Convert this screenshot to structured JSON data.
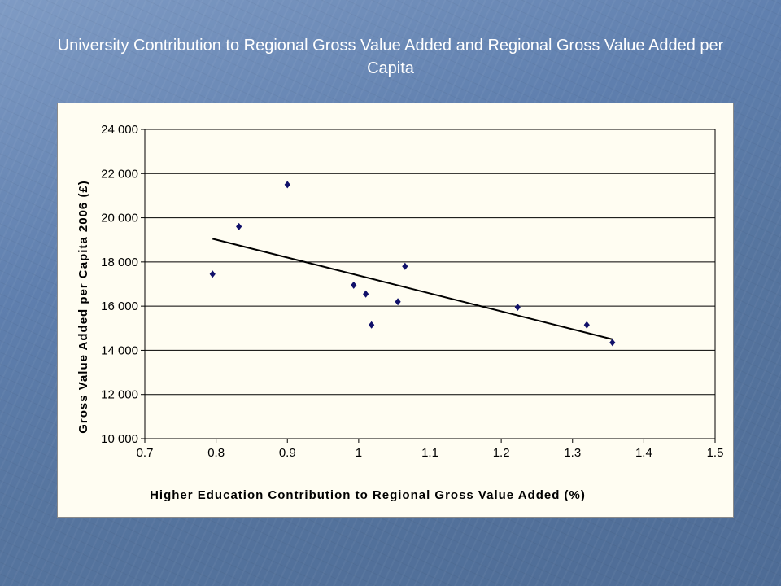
{
  "slide": {
    "title": "University Contribution to Regional Gross Value Added and Regional Gross Value Added per Capita"
  },
  "colors": {
    "marker": "#10106a",
    "trendline": "#000000",
    "gridline": "#000000",
    "plot_background": "#fffdf2"
  },
  "chart_data": {
    "type": "scatter",
    "title": "",
    "xlabel": "Higher Education Contribution to Regional Gross Value Added (%)",
    "ylabel": "Gross Value Added per Capita 2006 (£)",
    "xlim": [
      0.7,
      1.5
    ],
    "ylim": [
      10000,
      24000
    ],
    "x_ticks": [
      0.7,
      0.8,
      0.9,
      1,
      1.1,
      1.2,
      1.3,
      1.4,
      1.5
    ],
    "x_tick_labels": [
      "0.7",
      "0.8",
      "0.9",
      "1",
      "1.1",
      "1.2",
      "1.3",
      "1.4",
      "1.5"
    ],
    "y_ticks": [
      10000,
      12000,
      14000,
      16000,
      18000,
      20000,
      22000,
      24000
    ],
    "y_tick_labels": [
      "10 000",
      "12 000",
      "14 000",
      "16 000",
      "18 000",
      "20 000",
      "22 000",
      "24 000"
    ],
    "grid": "horizontal",
    "legend": "none",
    "marker_shape": "diamond",
    "points": [
      {
        "x": 0.795,
        "y": 17450
      },
      {
        "x": 0.832,
        "y": 19600
      },
      {
        "x": 0.9,
        "y": 21500
      },
      {
        "x": 0.993,
        "y": 16950
      },
      {
        "x": 1.01,
        "y": 16550
      },
      {
        "x": 1.018,
        "y": 15150
      },
      {
        "x": 1.055,
        "y": 16200
      },
      {
        "x": 1.065,
        "y": 17800
      },
      {
        "x": 1.223,
        "y": 15950
      },
      {
        "x": 1.32,
        "y": 15150
      },
      {
        "x": 1.356,
        "y": 14350
      }
    ],
    "trendline": {
      "type": "linear",
      "x": [
        0.795,
        1.356
      ],
      "y": [
        19050,
        14500
      ]
    }
  }
}
